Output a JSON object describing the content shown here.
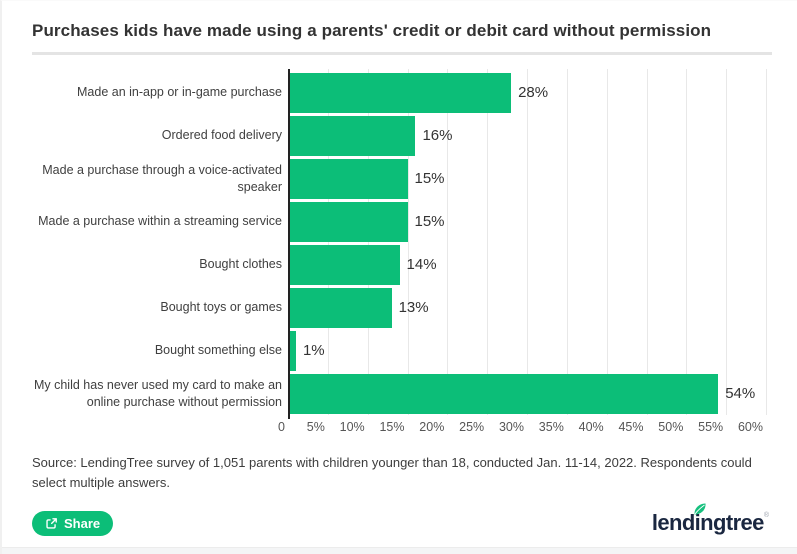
{
  "header": {
    "title": "Purchases kids have made using a parents' credit or debit card without permission"
  },
  "chart_data": {
    "type": "bar",
    "orientation": "horizontal",
    "title": "Purchases kids have made using a parents' credit or debit card without permission",
    "categories": [
      "Made an in-app or in-game purchase",
      "Ordered food delivery",
      "Made a purchase through a voice-activated speaker",
      "Made a purchase within a streaming service",
      "Bought clothes",
      "Bought toys or games",
      "Bought something else",
      "My child has never used my card to make an online purchase without permission"
    ],
    "values": [
      28,
      16,
      15,
      15,
      14,
      13,
      1,
      54
    ],
    "value_labels": [
      "28%",
      "16%",
      "15%",
      "15%",
      "14%",
      "13%",
      "1%",
      "54%"
    ],
    "xlim": [
      0,
      60
    ],
    "x_ticks": [
      "0",
      "5%",
      "10%",
      "15%",
      "20%",
      "25%",
      "30%",
      "35%",
      "40%",
      "45%",
      "50%",
      "55%",
      "60%"
    ],
    "grid": true,
    "bar_color": "#0cbe78",
    "legend": "none"
  },
  "source": {
    "text": "Source: LendingTree survey of 1,051 parents with children younger than 18, conducted Jan. 11-14, 2022. Respondents could select multiple answers."
  },
  "footer": {
    "share_label": "Share",
    "brand_text": "lendingtree",
    "trademark": "®"
  },
  "colors": {
    "bar_green": "#0cbe78",
    "share_button_green": "#0cbe78",
    "brand_navy": "#1a2740",
    "axis_line": "#222222",
    "gridline": "#e8e8e8",
    "title_text": "#333333"
  }
}
